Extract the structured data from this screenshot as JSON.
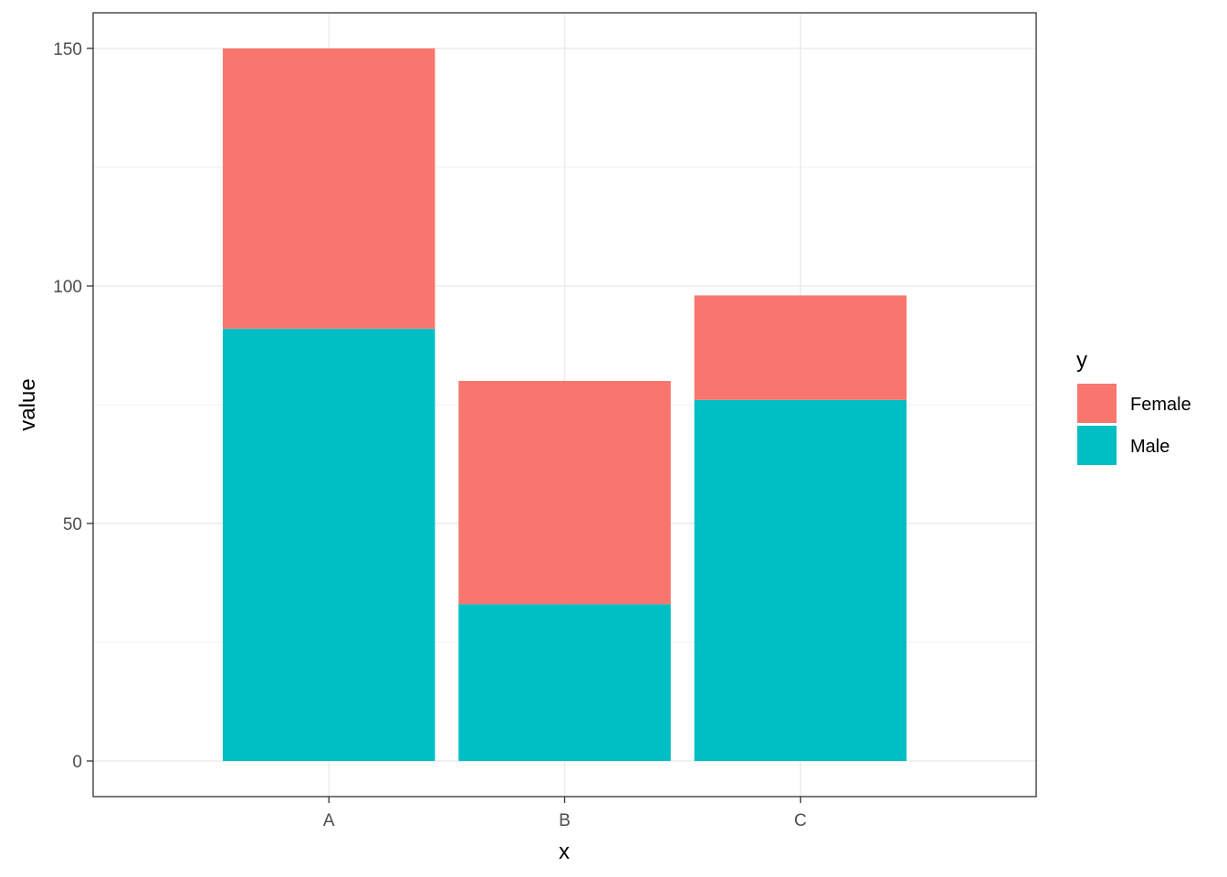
{
  "chart_data": {
    "type": "bar",
    "stacked": true,
    "categories": [
      "A",
      "B",
      "C"
    ],
    "series": [
      {
        "name": "Male",
        "values": [
          91,
          33,
          76
        ],
        "color": "#00BFC4"
      },
      {
        "name": "Female",
        "values": [
          59,
          47,
          22
        ],
        "color": "#F8766D"
      }
    ],
    "totals": [
      150,
      80,
      98
    ],
    "xlabel": "x",
    "ylabel": "value",
    "ylim": [
      -7.5,
      157.5
    ],
    "yticks": [
      0,
      50,
      100,
      150
    ],
    "ytick_labels": [
      "0",
      "50",
      "100",
      "150"
    ],
    "grid": true,
    "legend": {
      "title": "y",
      "position": "right",
      "entries": [
        "Female",
        "Male"
      ]
    }
  }
}
